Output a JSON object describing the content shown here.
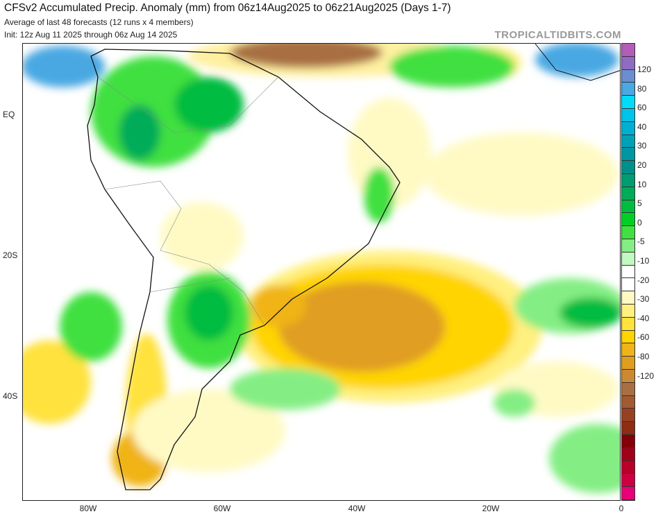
{
  "header": {
    "title": "CFSv2 Accumulated Precip. Anomaly (mm) from 06z14Aug2025 to 06z21Aug2025 (Days 1-7)",
    "subtitle": "Average of last 48 forecasts (12 runs x 4 members)",
    "init": "Init: 12z Aug 11 2025 through 06z Aug 14 2025",
    "brand": "TROPICALTIDBITS.COM"
  },
  "axes": {
    "x_labels": [
      "80W",
      "60W",
      "40W",
      "20W",
      "0"
    ],
    "y_labels": [
      "EQ",
      "20S",
      "40S"
    ]
  },
  "colorbar": {
    "labels": [
      "120",
      "80",
      "60",
      "40",
      "30",
      "20",
      "10",
      "5",
      "0",
      "-5",
      "-10",
      "-20",
      "-30",
      "-40",
      "-60",
      "-80",
      "-120"
    ],
    "colors": [
      "#b35cb8",
      "#8e6cc2",
      "#6b8ed2",
      "#4aa8e2",
      "#00dcf8",
      "#00c4ea",
      "#00b0d2",
      "#00a2b8",
      "#0096a2",
      "#00908c",
      "#009c72",
      "#00ac58",
      "#00bc40",
      "#00d024",
      "#40e040",
      "#84ee84",
      "#c2f8c2",
      "#ffffff",
      "#ffffff",
      "#fffac4",
      "#fff080",
      "#ffe23c",
      "#ffd400",
      "#f0b418",
      "#e09e20",
      "#cc8a30",
      "#a87042",
      "#a25a32",
      "#984022",
      "#8e2c14",
      "#840008",
      "#a00018",
      "#b8002a",
      "#cc0040",
      "#e80078"
    ]
  }
}
